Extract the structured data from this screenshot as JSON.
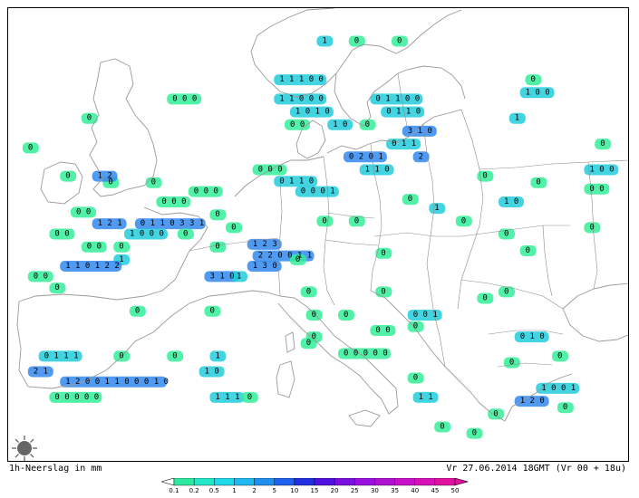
{
  "footer": {
    "product": "1h-Neerslag in mm",
    "valid_time": "Vr 27.06.2014 18GMT (Vr 00 + 18u)"
  },
  "legend": {
    "ticks": [
      "0.1",
      "0.2",
      "0.5",
      "1",
      "2",
      "5",
      "10",
      "15",
      "20",
      "25",
      "30",
      "35",
      "40",
      "45",
      "50"
    ],
    "colors": [
      "#2ee8a0",
      "#22e8c8",
      "#20d8e8",
      "#20b8f0",
      "#2090f0",
      "#2060f0",
      "#2030e0",
      "#5010e0",
      "#7a10e0",
      "#9a10e0",
      "#b010d0",
      "#c810c8",
      "#d810b8",
      "#e010a0"
    ]
  },
  "colors": {
    "light_green": "#33ee99",
    "cyan": "#22ccdd",
    "blue": "#3388ee",
    "deep_blue": "#2244dd",
    "coast": "#9a9a9a",
    "border": "#8c8c8c"
  },
  "icons": {
    "logo": "sunburst-logo-icon"
  },
  "values": [
    {
      "t": "0",
      "lon": -11.5,
      "lat": 56.2
    },
    {
      "t": "0",
      "lon": -6,
      "lat": 58.5
    },
    {
      "t": "0 0 0",
      "lon": 2,
      "lat": 60
    },
    {
      "t": "1",
      "lon": 16,
      "lat": 64.5
    },
    {
      "t": "0",
      "lon": 19,
      "lat": 64.5
    },
    {
      "t": "0",
      "lon": 23,
      "lat": 64.5
    },
    {
      "t": "1 1 1 0 0",
      "lon": 12,
      "lat": 61.5
    },
    {
      "t": "1 1 0 0 0",
      "lon": 12,
      "lat": 60
    },
    {
      "t": "1 0 1 0",
      "lon": 13.5,
      "lat": 59
    },
    {
      "t": "0 1 1 0 0",
      "lon": 21,
      "lat": 60
    },
    {
      "t": "0 1 1 0",
      "lon": 22,
      "lat": 59
    },
    {
      "t": "0",
      "lon": 20,
      "lat": 58
    },
    {
      "t": "3 1 0",
      "lon": 24,
      "lat": 57.5
    },
    {
      "t": "0 1 1",
      "lon": 22.5,
      "lat": 56.5
    },
    {
      "t": "0 2 0 1",
      "lon": 18.5,
      "lat": 55.5
    },
    {
      "t": "2",
      "lon": 25,
      "lat": 55.5
    },
    {
      "t": "0 0",
      "lon": 13,
      "lat": 58
    },
    {
      "t": "1 0",
      "lon": 17,
      "lat": 58
    },
    {
      "t": "0 0 0",
      "lon": 10,
      "lat": 54.5
    },
    {
      "t": "1 1 0",
      "lon": 20,
      "lat": 54.5
    },
    {
      "t": "0 1 1 0",
      "lon": 12,
      "lat": 53.6
    },
    {
      "t": "0 0 0 1",
      "lon": 14,
      "lat": 52.8
    },
    {
      "t": "0 0 0",
      "lon": 4,
      "lat": 52.8
    },
    {
      "t": "0",
      "lon": 0,
      "lat": 53.5
    },
    {
      "t": "0",
      "lon": -4,
      "lat": 53.5
    },
    {
      "t": "1 2",
      "lon": -5,
      "lat": 54
    },
    {
      "t": "0",
      "lon": -8,
      "lat": 54
    },
    {
      "t": "0 0 0",
      "lon": 1,
      "lat": 52
    },
    {
      "t": "0 0",
      "lon": -7,
      "lat": 51.2
    },
    {
      "t": "1 2 1",
      "lon": -5,
      "lat": 50.3
    },
    {
      "t": "0 1 1 0 3 3 1",
      "lon": -1,
      "lat": 50.3
    },
    {
      "t": "0 0",
      "lon": -9,
      "lat": 49.5
    },
    {
      "t": "1 0 0 0",
      "lon": -2,
      "lat": 49.5
    },
    {
      "t": "0",
      "lon": 3,
      "lat": 49.5
    },
    {
      "t": "0",
      "lon": 6,
      "lat": 51
    },
    {
      "t": "0",
      "lon": 7.5,
      "lat": 50
    },
    {
      "t": "0",
      "lon": 16,
      "lat": 50.5
    },
    {
      "t": "0",
      "lon": 19,
      "lat": 50.5
    },
    {
      "t": "1",
      "lon": 26.5,
      "lat": 51.5
    },
    {
      "t": "0",
      "lon": 24,
      "lat": 52.2
    },
    {
      "t": "0 0",
      "lon": -6,
      "lat": 48.5
    },
    {
      "t": "0",
      "lon": -3,
      "lat": 48.5
    },
    {
      "t": "1 2 3",
      "lon": 9.5,
      "lat": 48.7
    },
    {
      "t": "2 2 0 0 1 1",
      "lon": 10,
      "lat": 47.8
    },
    {
      "t": "0",
      "lon": 6,
      "lat": 48.5
    },
    {
      "t": "1",
      "lon": -3,
      "lat": 47.5
    },
    {
      "t": "1 1 0 1 2 2",
      "lon": -8,
      "lat": 47
    },
    {
      "t": "1 3 0",
      "lon": 9.5,
      "lat": 47
    },
    {
      "t": "0",
      "lon": 13.5,
      "lat": 47.5
    },
    {
      "t": "0",
      "lon": 21.5,
      "lat": 48
    },
    {
      "t": "0 0",
      "lon": -11,
      "lat": 46.2
    },
    {
      "t": "3 1 0",
      "lon": 5.5,
      "lat": 46.2
    },
    {
      "t": "1",
      "lon": 8,
      "lat": 46.2
    },
    {
      "t": "0",
      "lon": -9,
      "lat": 45.3
    },
    {
      "t": "0",
      "lon": 14.5,
      "lat": 45
    },
    {
      "t": "0",
      "lon": 21.5,
      "lat": 45
    },
    {
      "t": "0",
      "lon": -1.5,
      "lat": 43.5
    },
    {
      "t": "0",
      "lon": 5.5,
      "lat": 43.5
    },
    {
      "t": "0",
      "lon": 15,
      "lat": 43.2
    },
    {
      "t": "0",
      "lon": 18,
      "lat": 43.2
    },
    {
      "t": "0 0 1",
      "lon": 24.5,
      "lat": 43.2
    },
    {
      "t": "0",
      "lon": 24.5,
      "lat": 42.3
    },
    {
      "t": "0",
      "lon": 15,
      "lat": 41.5
    },
    {
      "t": "0",
      "lon": 31,
      "lat": 44.5
    },
    {
      "t": "0",
      "lon": 14.5,
      "lat": 41
    },
    {
      "t": "0 0 0 0 0",
      "lon": 18,
      "lat": 40.2
    },
    {
      "t": "0 0",
      "lon": 21,
      "lat": 42
    },
    {
      "t": "0 1 1 1",
      "lon": -10,
      "lat": 40
    },
    {
      "t": "0",
      "lon": -3,
      "lat": 40
    },
    {
      "t": "0",
      "lon": 2,
      "lat": 40
    },
    {
      "t": "1",
      "lon": 6,
      "lat": 40
    },
    {
      "t": "2 1",
      "lon": -11,
      "lat": 38.8
    },
    {
      "t": "1 0",
      "lon": 5,
      "lat": 38.8
    },
    {
      "t": "1 2 0 0 1 1 0 0 0 1 0",
      "lon": -8,
      "lat": 38
    },
    {
      "t": "0 0 0 0 0",
      "lon": -9,
      "lat": 36.8
    },
    {
      "t": "1 1 1",
      "lon": 6,
      "lat": 36.8
    },
    {
      "t": "0",
      "lon": 9,
      "lat": 36.8
    },
    {
      "t": "0",
      "lon": 24.5,
      "lat": 38.3
    },
    {
      "t": "1 1",
      "lon": 25,
      "lat": 36.8
    },
    {
      "t": "0",
      "lon": 27,
      "lat": 34.5
    },
    {
      "t": "0 1 0",
      "lon": 34.5,
      "lat": 41.5
    },
    {
      "t": "0",
      "lon": 33.5,
      "lat": 39.5
    },
    {
      "t": "0",
      "lon": 38,
      "lat": 40
    },
    {
      "t": "1 0 0 1",
      "lon": 36.5,
      "lat": 37.5
    },
    {
      "t": "1 2 0",
      "lon": 34.5,
      "lat": 36.5
    },
    {
      "t": "0",
      "lon": 38.5,
      "lat": 36
    },
    {
      "t": "0",
      "lon": 30,
      "lat": 34
    },
    {
      "t": "0",
      "lon": 32,
      "lat": 35.5
    },
    {
      "t": "0",
      "lon": 33,
      "lat": 45
    },
    {
      "t": "1 0",
      "lon": 33,
      "lat": 52
    },
    {
      "t": "0",
      "lon": 29,
      "lat": 50.5
    },
    {
      "t": "0",
      "lon": 33,
      "lat": 49.5
    },
    {
      "t": "0",
      "lon": 35,
      "lat": 48.2
    },
    {
      "t": "0",
      "lon": 41,
      "lat": 50
    },
    {
      "t": "1 0 0",
      "lon": 41,
      "lat": 54.5
    },
    {
      "t": "0 0",
      "lon": 41,
      "lat": 53
    },
    {
      "t": "0",
      "lon": 42,
      "lat": 56.5
    },
    {
      "t": "0",
      "lon": 31,
      "lat": 54
    },
    {
      "t": "1",
      "lon": 34,
      "lat": 58.5
    },
    {
      "t": "0",
      "lon": 35.5,
      "lat": 61.5
    },
    {
      "t": "1 0 0",
      "lon": 35,
      "lat": 60.5
    },
    {
      "t": "0",
      "lon": 36,
      "lat": 53.5
    }
  ]
}
